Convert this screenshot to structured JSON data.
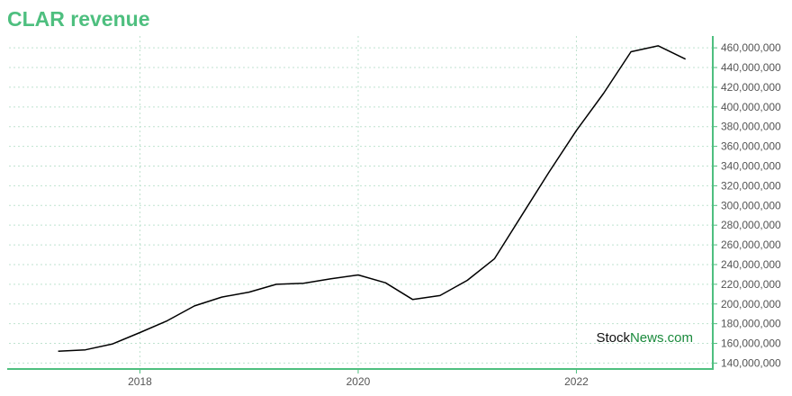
{
  "colors": {
    "title": "#4ebf7f",
    "axis": "#4ebf7f",
    "grid": "#bfe2cf",
    "line": "#000000",
    "watermark_dark": "#111111",
    "watermark_green": "#1a8a3c"
  },
  "watermark": {
    "part1": "Stock",
    "part2": "News",
    "part3": ".com"
  },
  "chart_data": {
    "type": "line",
    "title": "CLAR revenue",
    "xlabel": "",
    "ylabel": "",
    "x_ticks": [
      "2018",
      "2020",
      "2022"
    ],
    "x_tick_values": [
      2018.0,
      2020.0,
      2022.0
    ],
    "xlim": [
      2016.8,
      2023.25
    ],
    "y_ticks": [
      "140,000,000",
      "160,000,000",
      "180,000,000",
      "200,000,000",
      "220,000,000",
      "240,000,000",
      "260,000,000",
      "280,000,000",
      "300,000,000",
      "320,000,000",
      "340,000,000",
      "360,000,000",
      "380,000,000",
      "400,000,000",
      "420,000,000",
      "440,000,000",
      "460,000,000"
    ],
    "y_tick_values": [
      140000000,
      160000000,
      180000000,
      200000000,
      220000000,
      240000000,
      260000000,
      280000000,
      300000000,
      320000000,
      340000000,
      360000000,
      380000000,
      400000000,
      420000000,
      440000000,
      460000000
    ],
    "ylim": [
      134000000,
      472000000
    ],
    "grid": true,
    "series": [
      {
        "x": [
          2017.25,
          2017.5,
          2017.75,
          2018.0,
          2018.25,
          2018.5,
          2018.75,
          2019.0,
          2019.25,
          2019.5,
          2019.75,
          2020.0,
          2020.25,
          2020.5,
          2020.75,
          2021.0,
          2021.25,
          2021.5,
          2021.75,
          2022.0,
          2022.25,
          2022.5,
          2022.75,
          2023.0
        ],
        "values": [
          152000000,
          153500000,
          159500000,
          171000000,
          183000000,
          198000000,
          207000000,
          212000000,
          220000000,
          221000000,
          225500000,
          229500000,
          221500000,
          204500000,
          208500000,
          224000000,
          246000000,
          290000000,
          334000000,
          376000000,
          414000000,
          456000000,
          462000000,
          448500000
        ]
      }
    ]
  }
}
